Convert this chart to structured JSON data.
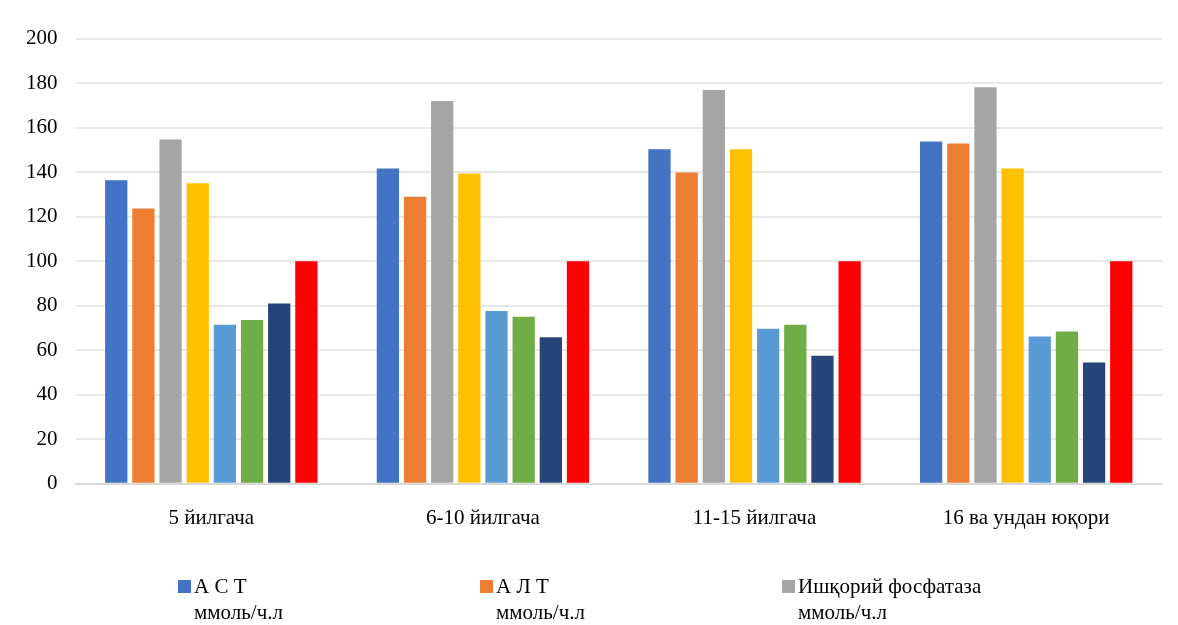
{
  "chart_data": {
    "type": "bar",
    "categories": [
      "5 йилгача",
      "6-10 йилгача",
      "11-15 йилгача",
      "16 ва ундан юқори"
    ],
    "series": [
      {
        "name": "А С Т\nммоль/ч.л",
        "color": "#4472c4",
        "values": [
          136.4,
          141.6,
          150.3,
          153.8
        ]
      },
      {
        "name": "А Л Т\nммоль/ч.л",
        "color": "#ed7d31",
        "values": [
          123.7,
          129,
          139.9,
          152.9
        ]
      },
      {
        "name": "Ишқорий фосфатаза\nммоль/ч.л",
        "color": "#a5a5a5",
        "values": [
          154.7,
          172,
          176.9,
          178.2
        ]
      },
      {
        "color": "#ffc000",
        "values": [
          135,
          139.4,
          150.3,
          141.6
        ]
      },
      {
        "color": "#5b9bd5",
        "values": [
          71.5,
          77.6,
          69.7,
          66.2
        ]
      },
      {
        "color": "#70ad47",
        "values": [
          73.6,
          75,
          71.5,
          68.4
        ]
      },
      {
        "color": "#264478",
        "values": [
          81,
          65.8,
          57.5,
          54.5
        ]
      },
      {
        "color": "#ff0000",
        "values": [
          100,
          100,
          100,
          100
        ]
      }
    ],
    "ylim": [
      0,
      200
    ],
    "yticks": [
      0,
      20,
      40,
      60,
      80,
      100,
      120,
      140,
      160,
      180,
      200
    ],
    "grid": "y",
    "legend": "bottom"
  }
}
